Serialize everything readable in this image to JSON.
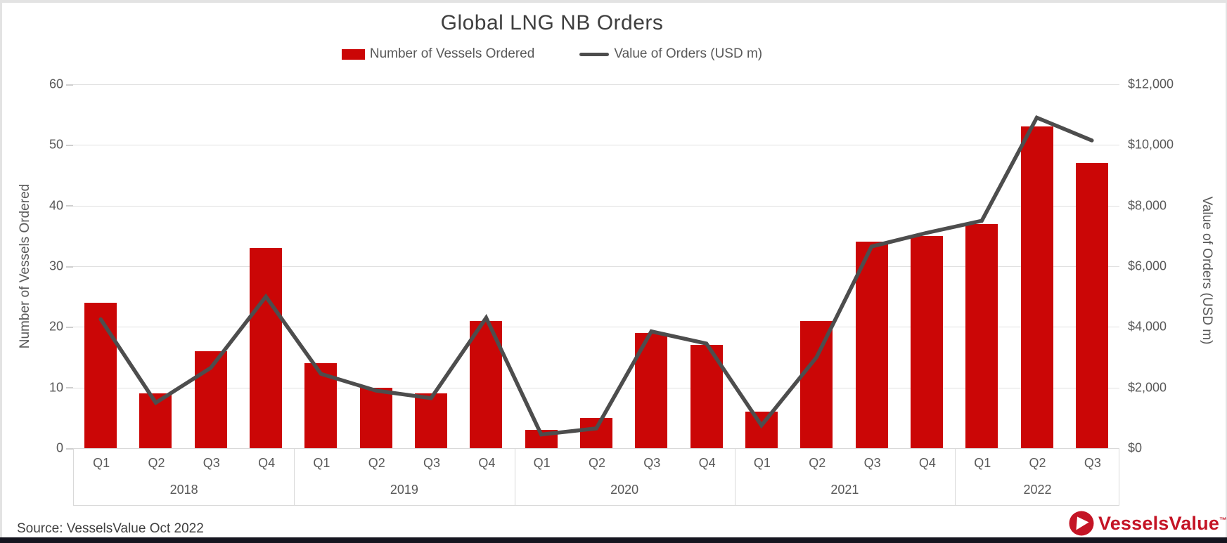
{
  "title": "Global LNG NB Orders",
  "legend": {
    "items": [
      {
        "label": "Number of Vessels Ordered",
        "swatch": "bar"
      },
      {
        "label": "Value of Orders (USD m)",
        "swatch": "line"
      }
    ]
  },
  "left_axis": {
    "title": "Number of Vessels Ordered",
    "min": 0,
    "max": 60,
    "step": 10,
    "tick_labels": [
      "0",
      "10",
      "20",
      "30",
      "40",
      "50",
      "60"
    ]
  },
  "right_axis": {
    "title": "Value of Orders (USD m)",
    "min": 0,
    "max": 12000,
    "step": 2000,
    "tick_labels": [
      "$0",
      "$2,000",
      "$4,000",
      "$6,000",
      "$8,000",
      "$10,000",
      "$12,000"
    ]
  },
  "x_axis": {
    "years": [
      {
        "label": "2018",
        "quarters": [
          "Q1",
          "Q2",
          "Q3",
          "Q4"
        ]
      },
      {
        "label": "2019",
        "quarters": [
          "Q1",
          "Q2",
          "Q3",
          "Q4"
        ]
      },
      {
        "label": "2020",
        "quarters": [
          "Q1",
          "Q2",
          "Q3",
          "Q4"
        ]
      },
      {
        "label": "2021",
        "quarters": [
          "Q1",
          "Q2",
          "Q3",
          "Q4"
        ]
      },
      {
        "label": "2022",
        "quarters": [
          "Q1",
          "Q2",
          "Q3"
        ]
      }
    ]
  },
  "chart_data": {
    "type": "bar+line dual-axis",
    "title": "Global LNG NB Orders",
    "categories": [
      "2018 Q1",
      "2018 Q2",
      "2018 Q3",
      "2018 Q4",
      "2019 Q1",
      "2019 Q2",
      "2019 Q3",
      "2019 Q4",
      "2020 Q1",
      "2020 Q2",
      "2020 Q3",
      "2020 Q4",
      "2021 Q1",
      "2021 Q2",
      "2021 Q3",
      "2021 Q4",
      "2022 Q1",
      "2022 Q2",
      "2022 Q3"
    ],
    "series": [
      {
        "name": "Number of Vessels Ordered",
        "type": "bar",
        "axis": "left",
        "values": [
          24,
          9,
          16,
          33,
          14,
          10,
          9,
          21,
          3,
          5,
          19,
          17,
          6,
          21,
          34,
          35,
          37,
          53,
          47
        ]
      },
      {
        "name": "Value of Orders (USD m)",
        "type": "line",
        "axis": "right",
        "values": [
          4250,
          1500,
          2650,
          5000,
          2450,
          1900,
          1650,
          4300,
          450,
          650,
          3850,
          3450,
          750,
          3000,
          6650,
          7100,
          7500,
          10900,
          10150
        ]
      }
    ],
    "left_ylim": [
      0,
      60
    ],
    "right_ylim": [
      0,
      12000
    ],
    "grid": "horizontal",
    "legend_position": "top"
  },
  "footer": {
    "source": "Source: VesselsValue Oct 2022",
    "logo_text": "VesselsValue",
    "logo_tm": "™"
  },
  "colors": {
    "bar": "#cb0606",
    "line": "#4d4d4d",
    "logo_red": "#c41425",
    "grid": "#e0e0e0",
    "axis_text": "#595959",
    "title_text": "#3f3f3f",
    "bottom_bar": "#15151f",
    "frame_border": "#e3e3e3"
  }
}
